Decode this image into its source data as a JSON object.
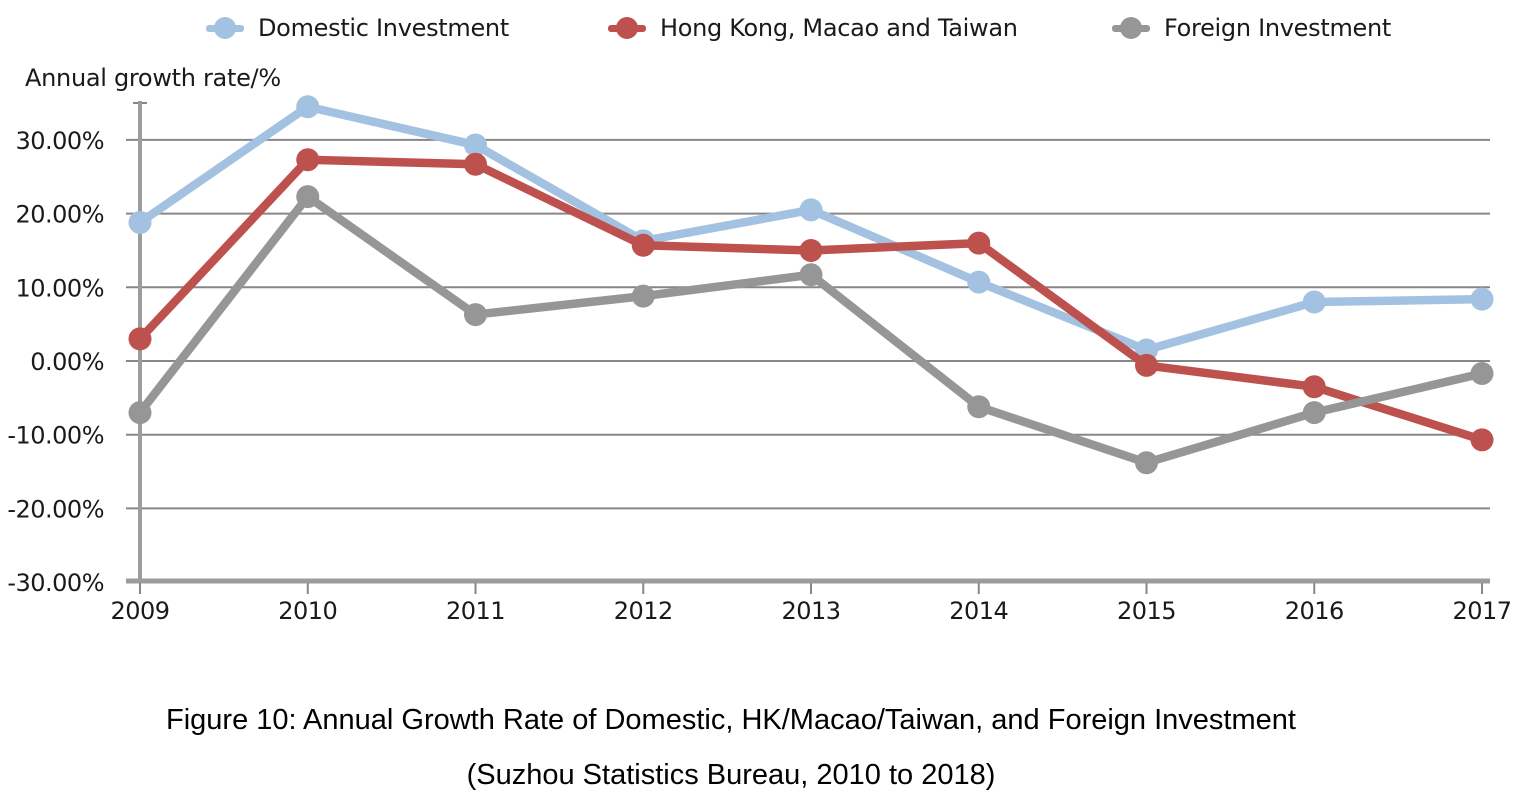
{
  "legend": {
    "items": [
      {
        "label": "Domestic Investment",
        "color": "#a3c1e0",
        "icon": "circle-marker-icon"
      },
      {
        "label": "Hong Kong, Macao and Taiwan",
        "color": "#bd514e",
        "icon": "circle-marker-icon"
      },
      {
        "label": "Foreign Investment",
        "color": "#969696",
        "icon": "circle-marker-icon"
      }
    ]
  },
  "axis_title": "Annual growth rate/%",
  "caption": {
    "line1": "Figure 10: Annual Growth Rate of Domestic, HK/Macao/Taiwan, and Foreign Investment",
    "line2": "(Suzhou Statistics Bureau, 2010 to 2018)"
  },
  "chart_data": {
    "type": "line",
    "title": "Annual Growth Rate of Domestic, HK/Macao/Taiwan, and Foreign Investment",
    "ylabel": "Annual growth rate/%",
    "xlabel": "",
    "categories": [
      "2009",
      "2010",
      "2011",
      "2012",
      "2013",
      "2014",
      "2015",
      "2016",
      "2017"
    ],
    "series": [
      {
        "name": "Domestic Investment",
        "color": "#a3c1e0",
        "values": [
          18.8,
          34.5,
          29.3,
          16.3,
          20.5,
          10.7,
          1.5,
          8.0,
          8.4
        ]
      },
      {
        "name": "Hong Kong, Macao and Taiwan",
        "color": "#bd514e",
        "values": [
          3.0,
          27.3,
          26.7,
          15.7,
          15.0,
          16.0,
          -0.6,
          -3.5,
          -10.7
        ]
      },
      {
        "name": "Foreign Investment",
        "color": "#969696",
        "values": [
          -7.0,
          22.3,
          6.3,
          8.8,
          11.7,
          -6.2,
          -13.8,
          -7.0,
          -1.7
        ]
      }
    ],
    "y_ticks": [
      30,
      20,
      10,
      0,
      -10,
      -20,
      -30
    ],
    "y_tick_labels": [
      "30.00%",
      "20.00%",
      "10.00%",
      "0.00%",
      "-10.00%",
      "-20.00%",
      "-30.00%"
    ],
    "ylim": [
      -30,
      35
    ],
    "grid": "horizontal",
    "legend_position": "top",
    "colors": {
      "gridline": "#878787",
      "axis": "#9c9c9c",
      "text": "#1a1a1a"
    }
  }
}
